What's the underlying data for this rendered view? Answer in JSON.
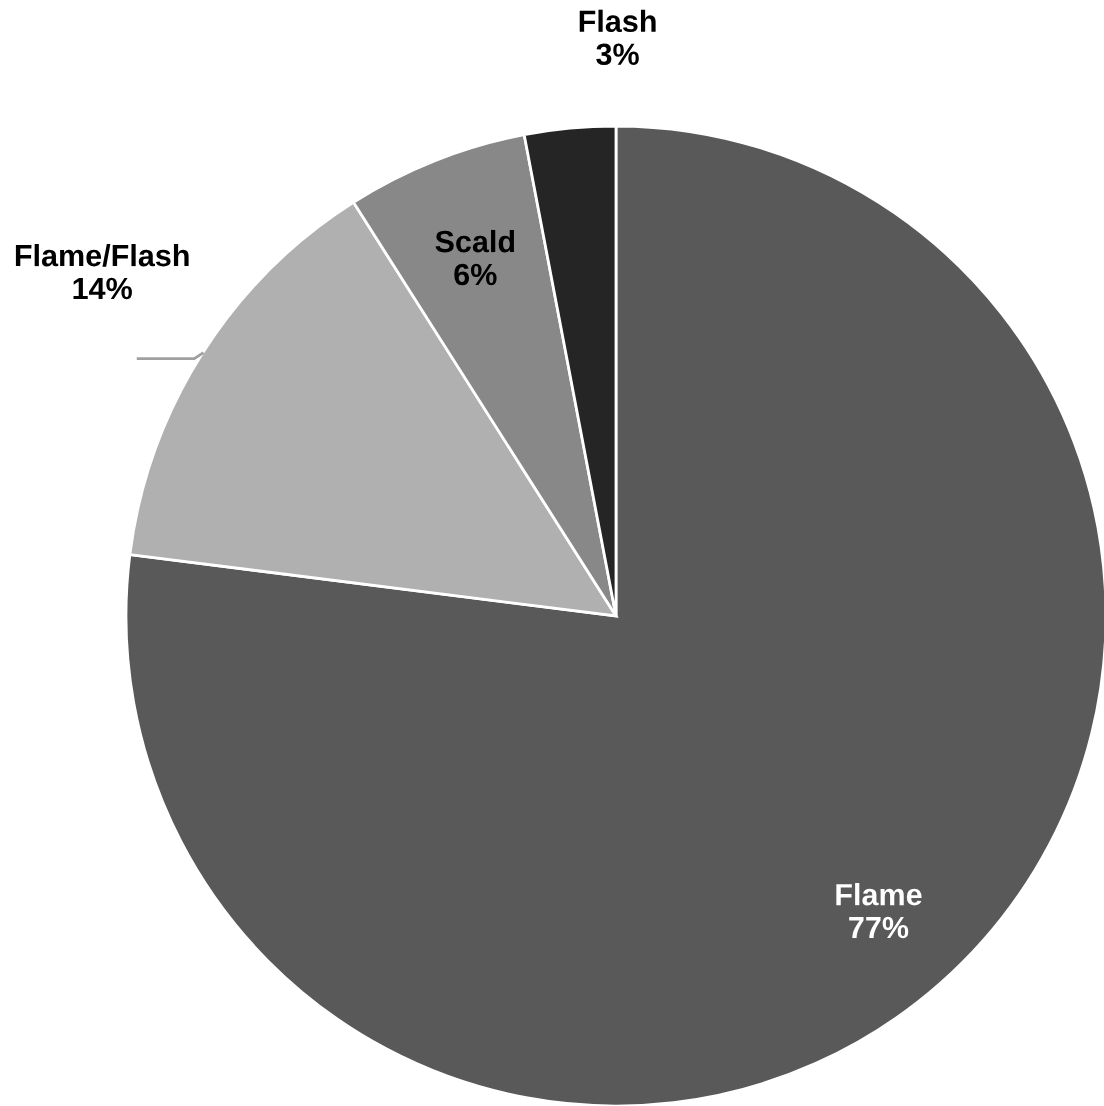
{
  "chart_data": {
    "type": "pie",
    "categories": [
      "Flame",
      "Flame/Flash",
      "Scald",
      "Flash"
    ],
    "values": [
      77,
      14,
      6,
      3
    ],
    "colors": [
      "#595959",
      "#b0b0b0",
      "#888888",
      "#252525"
    ],
    "value_labels": [
      "77%",
      "14%",
      "6%",
      "3%"
    ],
    "legend": false
  }
}
